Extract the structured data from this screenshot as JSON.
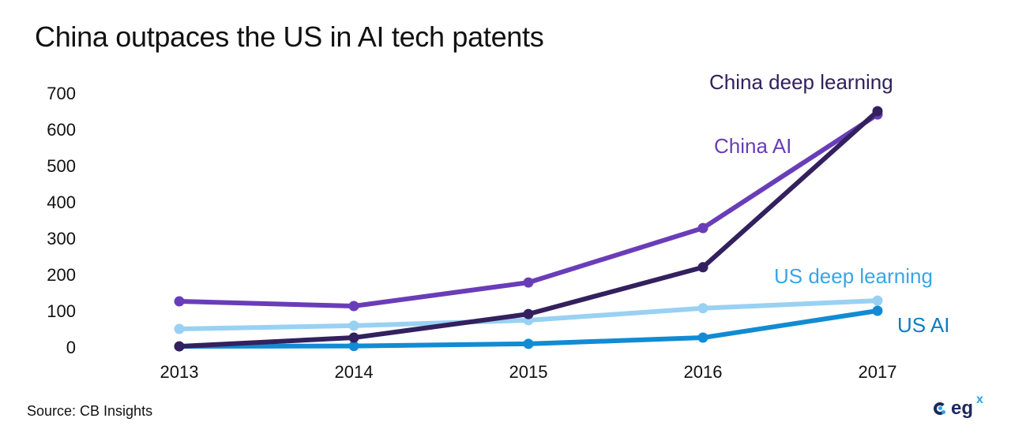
{
  "chart_data": {
    "type": "line",
    "title": "China outpaces the US in AI tech patents",
    "xlabel": "",
    "ylabel": "",
    "x": [
      "2013",
      "2014",
      "2015",
      "2016",
      "2017"
    ],
    "yticks": [
      "0",
      "100",
      "200",
      "300",
      "400",
      "500",
      "600",
      "700"
    ],
    "ylim": [
      0,
      700
    ],
    "grid": false,
    "legend": "inline-labels",
    "series": [
      {
        "name": "US deep learning",
        "color": "#99d1f3",
        "values": [
          50,
          59,
          74,
          107,
          128
        ]
      },
      {
        "name": "US AI",
        "color": "#118bd3",
        "values": [
          2,
          3,
          9,
          26,
          100
        ]
      },
      {
        "name": "China AI",
        "color": "#6a3db8",
        "values": [
          126,
          113,
          178,
          328,
          641
        ]
      },
      {
        "name": "China deep learning",
        "color": "#33205e",
        "values": [
          2,
          26,
          91,
          220,
          650
        ]
      }
    ]
  },
  "labels": {
    "china_deep_learning": "China deep learning",
    "china_ai": "China AI",
    "us_deep_learning": "US deep learning",
    "us_ai": "US AI"
  },
  "footer": {
    "source": "Source: CB Insights"
  },
  "logo": {
    "text": "eg",
    "superscript": "x",
    "icon": "egx-logo-icon"
  }
}
